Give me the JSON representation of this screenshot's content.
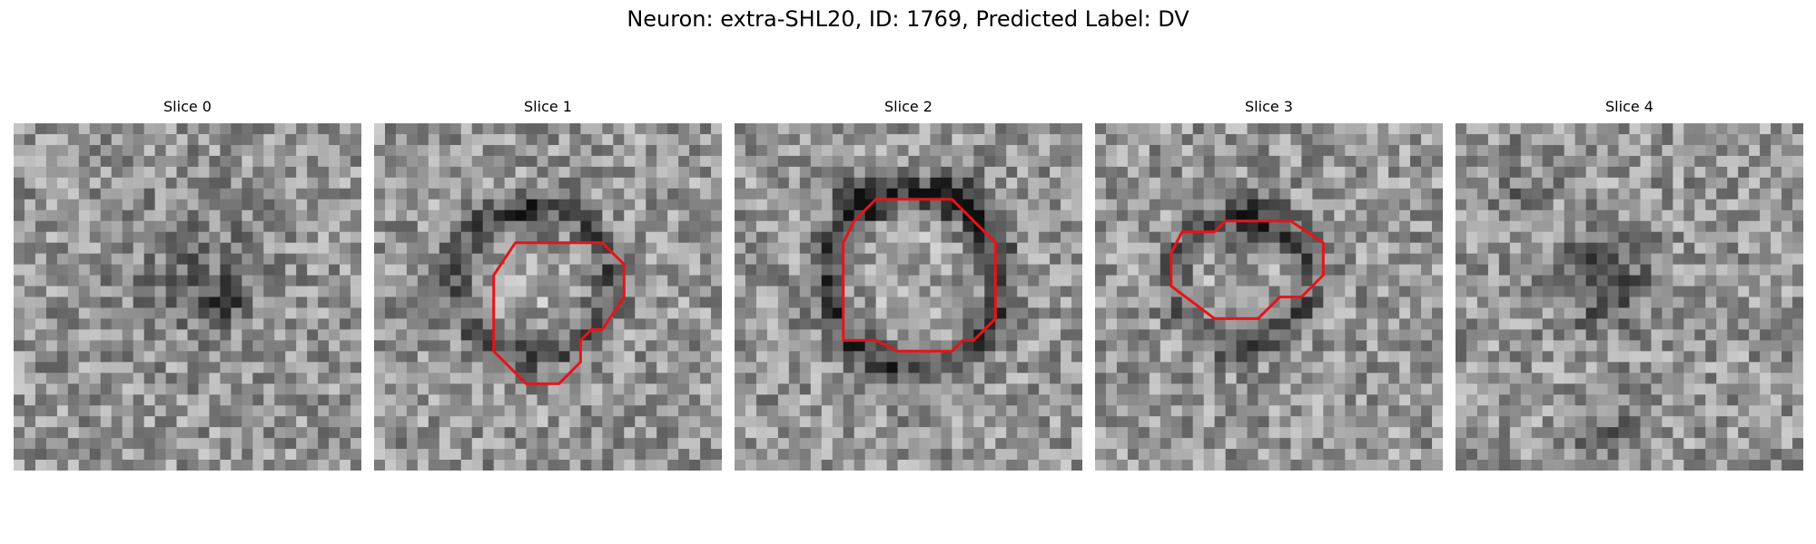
{
  "figure": {
    "title": "Neuron: extra-SHL20, ID: 1769, Predicted Label: DV"
  },
  "panels": [
    {
      "title": "Slice 0",
      "has_contour": false,
      "contour_color": "#e8131a"
    },
    {
      "title": "Slice 1",
      "has_contour": true,
      "contour_color": "#e8131a"
    },
    {
      "title": "Slice 2",
      "has_contour": true,
      "contour_color": "#e8131a"
    },
    {
      "title": "Slice 3",
      "has_contour": true,
      "contour_color": "#e8131a"
    },
    {
      "title": "Slice 4",
      "has_contour": false,
      "contour_color": "#e8131a"
    }
  ]
}
